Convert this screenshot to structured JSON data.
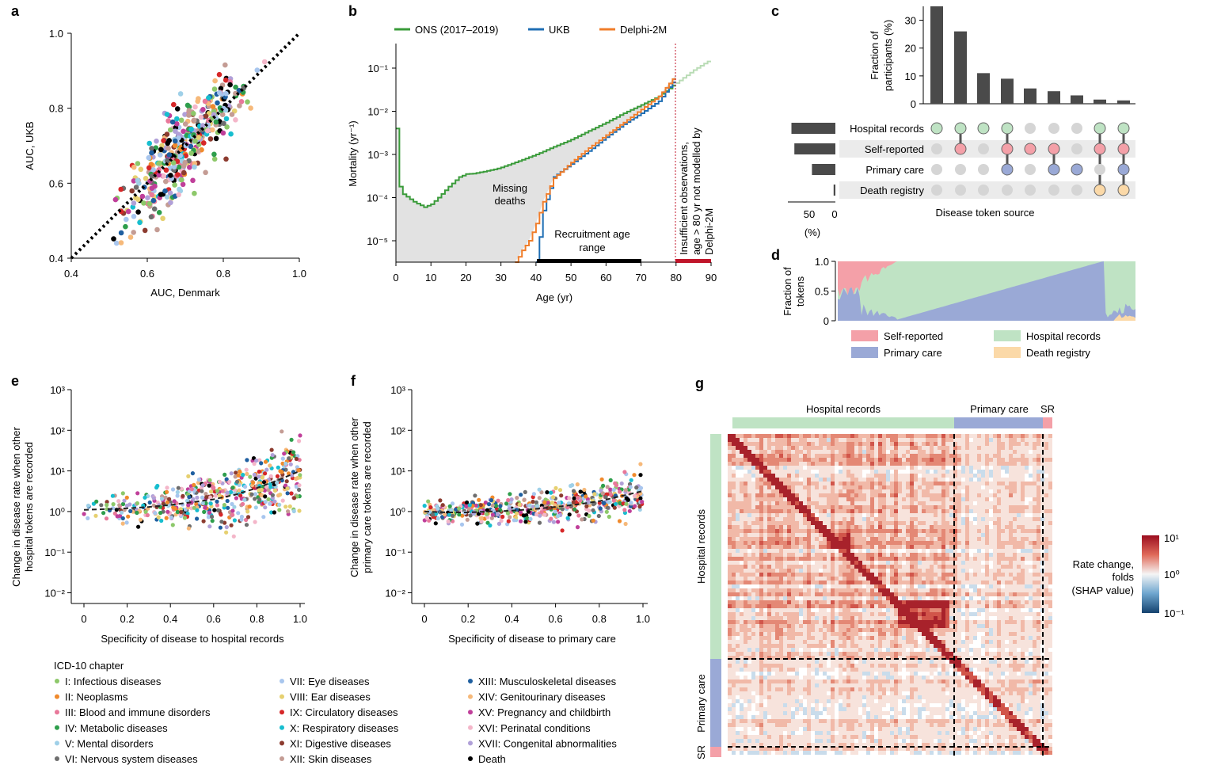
{
  "panels": {
    "a": {
      "letter": "a",
      "xlabel": "AUC, Denmark",
      "ylabel": "AUC, UKB",
      "xticks": [
        "0.4",
        "0.6",
        "0.8",
        "1.0"
      ],
      "yticks": [
        "0.4",
        "0.6",
        "0.8",
        "1.0"
      ]
    },
    "b": {
      "letter": "b",
      "xlabel": "Age (yr)",
      "ylabel": "Mortality (yr⁻¹)",
      "xticks": [
        "0",
        "10",
        "20",
        "30",
        "40",
        "50",
        "60",
        "70",
        "80",
        "90"
      ],
      "yticks": [
        "10⁻⁵",
        "10⁻⁴",
        "10⁻³",
        "10⁻²",
        "10⁻¹"
      ],
      "legend": [
        "ONS (2017–2019)",
        "UKB",
        "Delphi-2M"
      ],
      "ann_missing": [
        "Missing",
        "deaths"
      ],
      "ann_recruit": [
        "Recruitment age",
        "range"
      ],
      "ann_insufficient": [
        "Insufficient observations,",
        "age > 80 yr not modelled by",
        "Delphi-2M"
      ]
    },
    "c": {
      "letter": "c",
      "ylabel": [
        "Fraction of",
        "participants (%)"
      ],
      "yticks": [
        "0",
        "10",
        "20",
        "30"
      ],
      "rows": [
        "Hospital records",
        "Self-reported",
        "Primary care",
        "Death registry"
      ],
      "xaxis_title": "Disease token source",
      "bar_ticks": [
        "50",
        "0"
      ],
      "bar_unit": "(%)"
    },
    "d": {
      "letter": "d",
      "ylabel": [
        "Fraction of",
        "tokens"
      ],
      "yticks": [
        "0",
        "0.5",
        "1.0"
      ],
      "legend": [
        "Self-reported",
        "Hospital records",
        "Primary care",
        "Death registry"
      ]
    },
    "e": {
      "letter": "e",
      "xlabel": "Specificity of disease to hospital records",
      "ylabel": [
        "Change in disease rate when other",
        "hospital tokens are recorded"
      ],
      "xticks": [
        "0",
        "0.2",
        "0.4",
        "0.6",
        "0.8",
        "1.0"
      ]
    },
    "f": {
      "letter": "f",
      "xlabel": "Specificity of disease to primary care",
      "ylabel": [
        "Change in disease rate when other",
        "primary care tokens are recorded"
      ],
      "xticks": [
        "0",
        "0.2",
        "0.4",
        "0.6",
        "0.8",
        "1.0"
      ]
    },
    "g": {
      "letter": "g",
      "top_labels": [
        "Hospital records",
        "Primary care",
        "SR"
      ],
      "side_labels": [
        "Hospital records",
        "Primary care",
        "SR"
      ],
      "cbar_label": [
        "Rate change,",
        "folds",
        "(SHAP value)"
      ],
      "cbar_ticks": [
        "10¹",
        "10⁰",
        "10⁻¹"
      ]
    }
  },
  "log_ticks": [
    "10³",
    "10²",
    "10¹",
    "10⁰",
    "10⁻¹",
    "10⁻²"
  ],
  "icd_legend": {
    "title": "ICD-10 chapter",
    "items": [
      {
        "label": "I: Infectious diseases",
        "color": "#8dc86a"
      },
      {
        "label": "II: Neoplasms",
        "color": "#f08a2c"
      },
      {
        "label": "III: Blood and immune disorders",
        "color": "#e8789a"
      },
      {
        "label": "IV: Metabolic diseases",
        "color": "#2e9e4c"
      },
      {
        "label": "V: Mental disorders",
        "color": "#9fd0e8"
      },
      {
        "label": "VI: Nervous system diseases",
        "color": "#6e6e6e"
      },
      {
        "label": "VII: Eye diseases",
        "color": "#a8c6ee"
      },
      {
        "label": "VIII: Ear diseases",
        "color": "#e6d070"
      },
      {
        "label": "IX: Circulatory diseases",
        "color": "#d62728"
      },
      {
        "label": "X: Respiratory diseases",
        "color": "#17becf"
      },
      {
        "label": "XI: Digestive diseases",
        "color": "#8c3b2f"
      },
      {
        "label": "XII: Skin diseases",
        "color": "#c49c94"
      },
      {
        "label": "XIII: Musculoskeletal diseases",
        "color": "#1f5fa0"
      },
      {
        "label": "XIV: Genitourinary diseases",
        "color": "#f6b97a"
      },
      {
        "label": "XV: Pregnancy and childbirth",
        "color": "#c03f9a"
      },
      {
        "label": "XVI: Perinatal conditions",
        "color": "#f4b6c9"
      },
      {
        "label": "XVII: Congenital abnormalities",
        "color": "#b0a0d8"
      },
      {
        "label": "Death",
        "color": "#000000"
      }
    ]
  },
  "colors": {
    "ons": "#3a9b3a",
    "ukb": "#1f6eb4",
    "delphi": "#f07d2a",
    "hospital": "#bfe3c4",
    "primary": "#9aa9d6",
    "self": "#f4a0a8",
    "death": "#fbd9a8",
    "grey_bar": "#4a4a4a",
    "dot_off": "#d5d5d5"
  },
  "chart_data": [
    {
      "panel": "a",
      "type": "scatter",
      "xlabel": "AUC, Denmark",
      "ylabel": "AUC, UKB",
      "xlim": [
        0.4,
        1.0
      ],
      "ylim": [
        0.4,
        1.0
      ],
      "reference_line": "y = x (dotted)",
      "points_note": "Several hundred points, one per disease, coloured by ICD-10 chapter, mostly 0.5–0.9"
    },
    {
      "panel": "b",
      "type": "line",
      "xlabel": "Age (yr)",
      "ylabel": "Mortality (yr⁻¹)",
      "yscale": "log",
      "xlim": [
        0,
        90
      ],
      "ylim": [
        3e-06,
        0.3
      ],
      "series": [
        {
          "name": "ONS (2017–2019)",
          "x": [
            0,
            1,
            2,
            5,
            8,
            10,
            12,
            15,
            18,
            20,
            22,
            25,
            28,
            30,
            35,
            40,
            45,
            50,
            55,
            60,
            65,
            70,
            75,
            80,
            85,
            90
          ],
          "y": [
            0.004,
            0.00018,
            0.00012,
            8e-05,
            6e-05,
            7e-05,
            0.0001,
            0.00018,
            0.0003,
            0.00035,
            0.00036,
            0.0004,
            0.00045,
            0.0005,
            0.0007,
            0.001,
            0.0015,
            0.0022,
            0.0035,
            0.0055,
            0.009,
            0.014,
            0.022,
            0.045,
            0.09,
            0.16
          ]
        },
        {
          "name": "UKB",
          "x": [
            40,
            42,
            45,
            50,
            55,
            60,
            65,
            70,
            75,
            80
          ],
          "y": [
            3e-06,
            5e-05,
            0.0003,
            0.0006,
            0.0012,
            0.0025,
            0.005,
            0.009,
            0.017,
            0.06
          ]
        },
        {
          "name": "Delphi-2M",
          "x": [
            34,
            36,
            38,
            40,
            42,
            45,
            50,
            55,
            60,
            65,
            70,
            75,
            80
          ],
          "y": [
            3e-06,
            6e-06,
            1e-05,
            2.5e-05,
            8e-05,
            0.00028,
            0.00065,
            0.0014,
            0.0028,
            0.0055,
            0.011,
            0.022,
            0.07
          ]
        }
      ]
    },
    {
      "panel": "c",
      "type": "bar",
      "ylabel": "Fraction of participants (%)",
      "ylim": [
        0,
        35
      ],
      "values": [
        35,
        26,
        11,
        9,
        5.5,
        4.5,
        3,
        1.5,
        1.2
      ],
      "combinations": [
        [
          "Hospital records"
        ],
        [
          "Hospital records",
          "Self-reported"
        ],
        [
          "Hospital records"
        ],
        [
          "Hospital records",
          "Self-reported",
          "Primary care"
        ],
        [
          "Self-reported"
        ],
        [
          "Self-reported",
          "Primary care"
        ],
        [
          "Primary care"
        ],
        [
          "Hospital records",
          "Self-reported",
          "Death registry"
        ],
        [
          "Hospital records",
          "Self-reported",
          "Primary care",
          "Death registry"
        ]
      ],
      "row_totals": [
        {
          "name": "Hospital records",
          "value": 75
        },
        {
          "name": "Self-reported",
          "value": 70
        },
        {
          "name": "Primary care",
          "value": 40
        },
        {
          "name": "Death registry",
          "value": 3
        }
      ]
    },
    {
      "panel": "d",
      "type": "area",
      "ylabel": "Fraction of tokens",
      "ylim": [
        0,
        1
      ],
      "series": [
        "Self-reported",
        "Hospital records",
        "Primary care",
        "Death registry"
      ],
      "note": "Stacked fraction per token; primary care fraction rises across token index"
    },
    {
      "panel": "e",
      "type": "scatter",
      "yscale": "log",
      "xlim": [
        0,
        1
      ],
      "ylim": [
        0.01,
        1000
      ],
      "xlabel": "Specificity of disease to hospital records",
      "ylabel": "Change in disease rate when other hospital tokens are recorded",
      "trend_x": [
        0,
        0.1,
        0.2,
        0.3,
        0.4,
        0.5,
        0.6,
        0.7,
        0.8,
        0.9,
        1.0
      ],
      "trend_y": [
        1.1,
        1.15,
        1.2,
        1.3,
        1.45,
        1.7,
        2.0,
        2.6,
        3.8,
        6.0,
        10.0
      ]
    },
    {
      "panel": "f",
      "type": "scatter",
      "yscale": "log",
      "xlim": [
        0,
        1
      ],
      "ylim": [
        0.01,
        1000
      ],
      "xlabel": "Specificity of disease to primary care",
      "ylabel": "Change in disease rate when other primary care tokens are recorded",
      "trend_x": [
        0,
        0.1,
        0.2,
        0.3,
        0.4,
        0.5,
        0.6,
        0.7,
        0.8,
        0.9,
        1.0
      ],
      "trend_y": [
        1.0,
        0.95,
        0.95,
        1.0,
        1.05,
        1.15,
        1.3,
        1.5,
        1.8,
        2.4,
        3.2
      ]
    },
    {
      "panel": "g",
      "type": "heatmap",
      "colorbar": "Rate change, folds (SHAP value)",
      "clim": [
        0.1,
        10
      ],
      "blocks": [
        "Hospital records",
        "Primary care",
        "SR"
      ]
    }
  ]
}
